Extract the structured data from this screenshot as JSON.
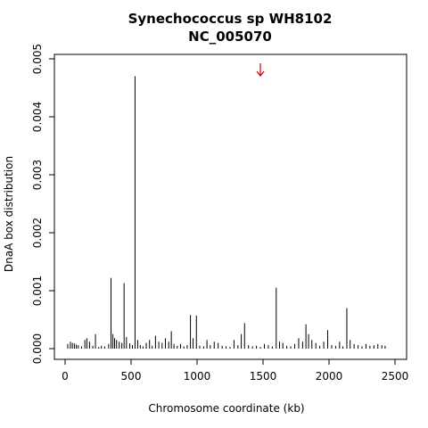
{
  "chart_data": {
    "type": "bar",
    "title_lines": [
      "Synechococcus sp WH8102",
      "NC_005070"
    ],
    "xlabel": "Chromosome coordinate (kb)",
    "ylabel": "DnaA box distribution",
    "xlim": [
      0,
      2500
    ],
    "ylim": [
      0,
      0.005
    ],
    "x_ticks": [
      0,
      500,
      1000,
      1500,
      2000,
      2500
    ],
    "x_tick_labels": [
      "0",
      "500",
      "1000",
      "1500",
      "2000",
      "2500"
    ],
    "y_ticks": [
      0,
      0.001,
      0.002,
      0.003,
      0.004,
      0.005
    ],
    "y_tick_labels": [
      "0.000",
      "0.001",
      "0.002",
      "0.003",
      "0.004",
      "0.005"
    ],
    "grid": false,
    "legend": "none",
    "bar_color": "#000000",
    "marker": {
      "type": "arrow-down",
      "x": 1480,
      "y": 0.0048,
      "color": "#cc0000"
    },
    "series": [
      {
        "x": [
          20,
          40,
          55,
          70,
          85,
          100,
          125,
          150,
          165,
          185,
          210,
          230,
          255,
          275,
          300,
          330,
          348,
          362,
          375,
          390,
          410,
          430,
          447,
          465,
          490,
          510,
          530,
          550,
          570,
          590,
          615,
          640,
          660,
          685,
          710,
          735,
          760,
          785,
          805,
          825,
          850,
          875,
          900,
          925,
          950,
          970,
          995,
          1020,
          1050,
          1075,
          1100,
          1130,
          1160,
          1190,
          1220,
          1250,
          1280,
          1310,
          1335,
          1360,
          1390,
          1420,
          1450,
          1480,
          1510,
          1540,
          1570,
          1600,
          1625,
          1650,
          1680,
          1710,
          1740,
          1770,
          1800,
          1825,
          1845,
          1870,
          1900,
          1930,
          1960,
          1990,
          2020,
          2050,
          2080,
          2105,
          2135,
          2160,
          2190,
          2220,
          2250,
          2280,
          2310,
          2340,
          2370,
          2400,
          2425
        ],
        "values": [
          8e-05,
          0.00012,
          0.0001,
          9e-05,
          7e-05,
          6e-05,
          4e-05,
          0.00015,
          0.00018,
          0.00012,
          5e-05,
          0.00025,
          3e-05,
          5e-05,
          4e-05,
          8e-05,
          0.00122,
          0.00025,
          0.00018,
          0.00015,
          0.00012,
          0.0001,
          0.00113,
          0.0002,
          9e-05,
          6e-05,
          0.0047,
          0.00015,
          6e-05,
          4e-05,
          0.0001,
          0.00015,
          5e-05,
          0.00022,
          0.00012,
          0.0001,
          0.00018,
          0.00012,
          0.0003,
          8e-05,
          5e-05,
          8e-05,
          4e-05,
          6e-05,
          0.00058,
          0.00018,
          0.00057,
          5e-05,
          4e-05,
          0.00015,
          6e-05,
          0.00012,
          0.0001,
          5e-05,
          4e-05,
          3e-05,
          0.00015,
          6e-05,
          0.00025,
          0.00044,
          6e-05,
          4e-05,
          5e-05,
          3e-05,
          8e-05,
          6e-05,
          4e-05,
          0.00105,
          0.00012,
          0.0001,
          5e-05,
          4e-05,
          8e-05,
          0.00018,
          0.00012,
          0.00042,
          0.00025,
          0.00015,
          0.0001,
          5e-05,
          0.00012,
          0.00032,
          6e-05,
          5e-05,
          0.00012,
          4e-05,
          0.0007,
          0.00015,
          8e-05,
          6e-05,
          4e-05,
          8e-05,
          5e-05,
          6e-05,
          8e-05,
          6e-05,
          5e-05
        ]
      }
    ]
  }
}
